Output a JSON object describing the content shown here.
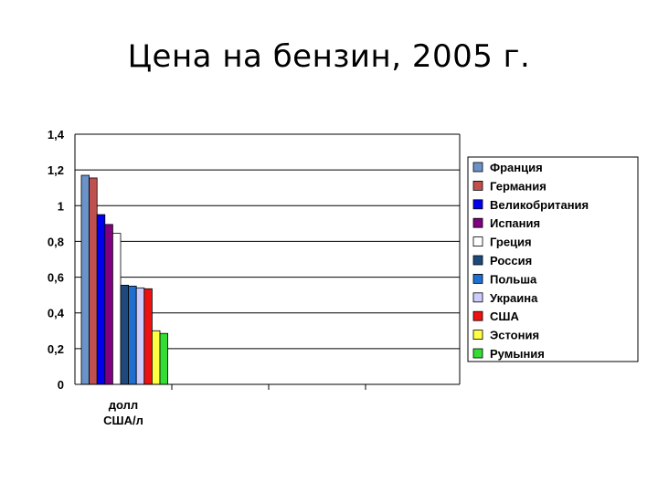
{
  "title": "Цена на бензин, 2005 г.",
  "chart_data": {
    "type": "bar",
    "categories": [
      "долл США/л"
    ],
    "category_lines": [
      "долл",
      "США/л"
    ],
    "ylim": [
      0,
      1.4
    ],
    "yticks": [
      "0",
      "0,2",
      "0,4",
      "0,6",
      "0,8",
      "1",
      "1,2",
      "1,4"
    ],
    "grid": true,
    "legend_position": "right",
    "series": [
      {
        "name": "Франция",
        "values": [
          1.17
        ],
        "color": "#6c93c8"
      },
      {
        "name": "Германия",
        "values": [
          1.155
        ],
        "color": "#c0504d"
      },
      {
        "name": "Великобритания",
        "values": [
          0.95
        ],
        "color": "#0000ee"
      },
      {
        "name": "Испания",
        "values": [
          0.895
        ],
        "color": "#800080"
      },
      {
        "name": "Греция",
        "values": [
          0.845
        ],
        "color": "#ffffff"
      },
      {
        "name": "Россия",
        "values": [
          0.555
        ],
        "color": "#1f497d"
      },
      {
        "name": "Польша",
        "values": [
          0.55
        ],
        "color": "#1f6fd0"
      },
      {
        "name": "Украина",
        "values": [
          0.54
        ],
        "color": "#ccccff"
      },
      {
        "name": "США",
        "values": [
          0.535
        ],
        "color": "#ee1111"
      },
      {
        "name": "Эстония",
        "values": [
          0.3
        ],
        "color": "#ffff44"
      },
      {
        "name": "Румыния",
        "values": [
          0.285
        ],
        "color": "#33dd33"
      }
    ]
  }
}
